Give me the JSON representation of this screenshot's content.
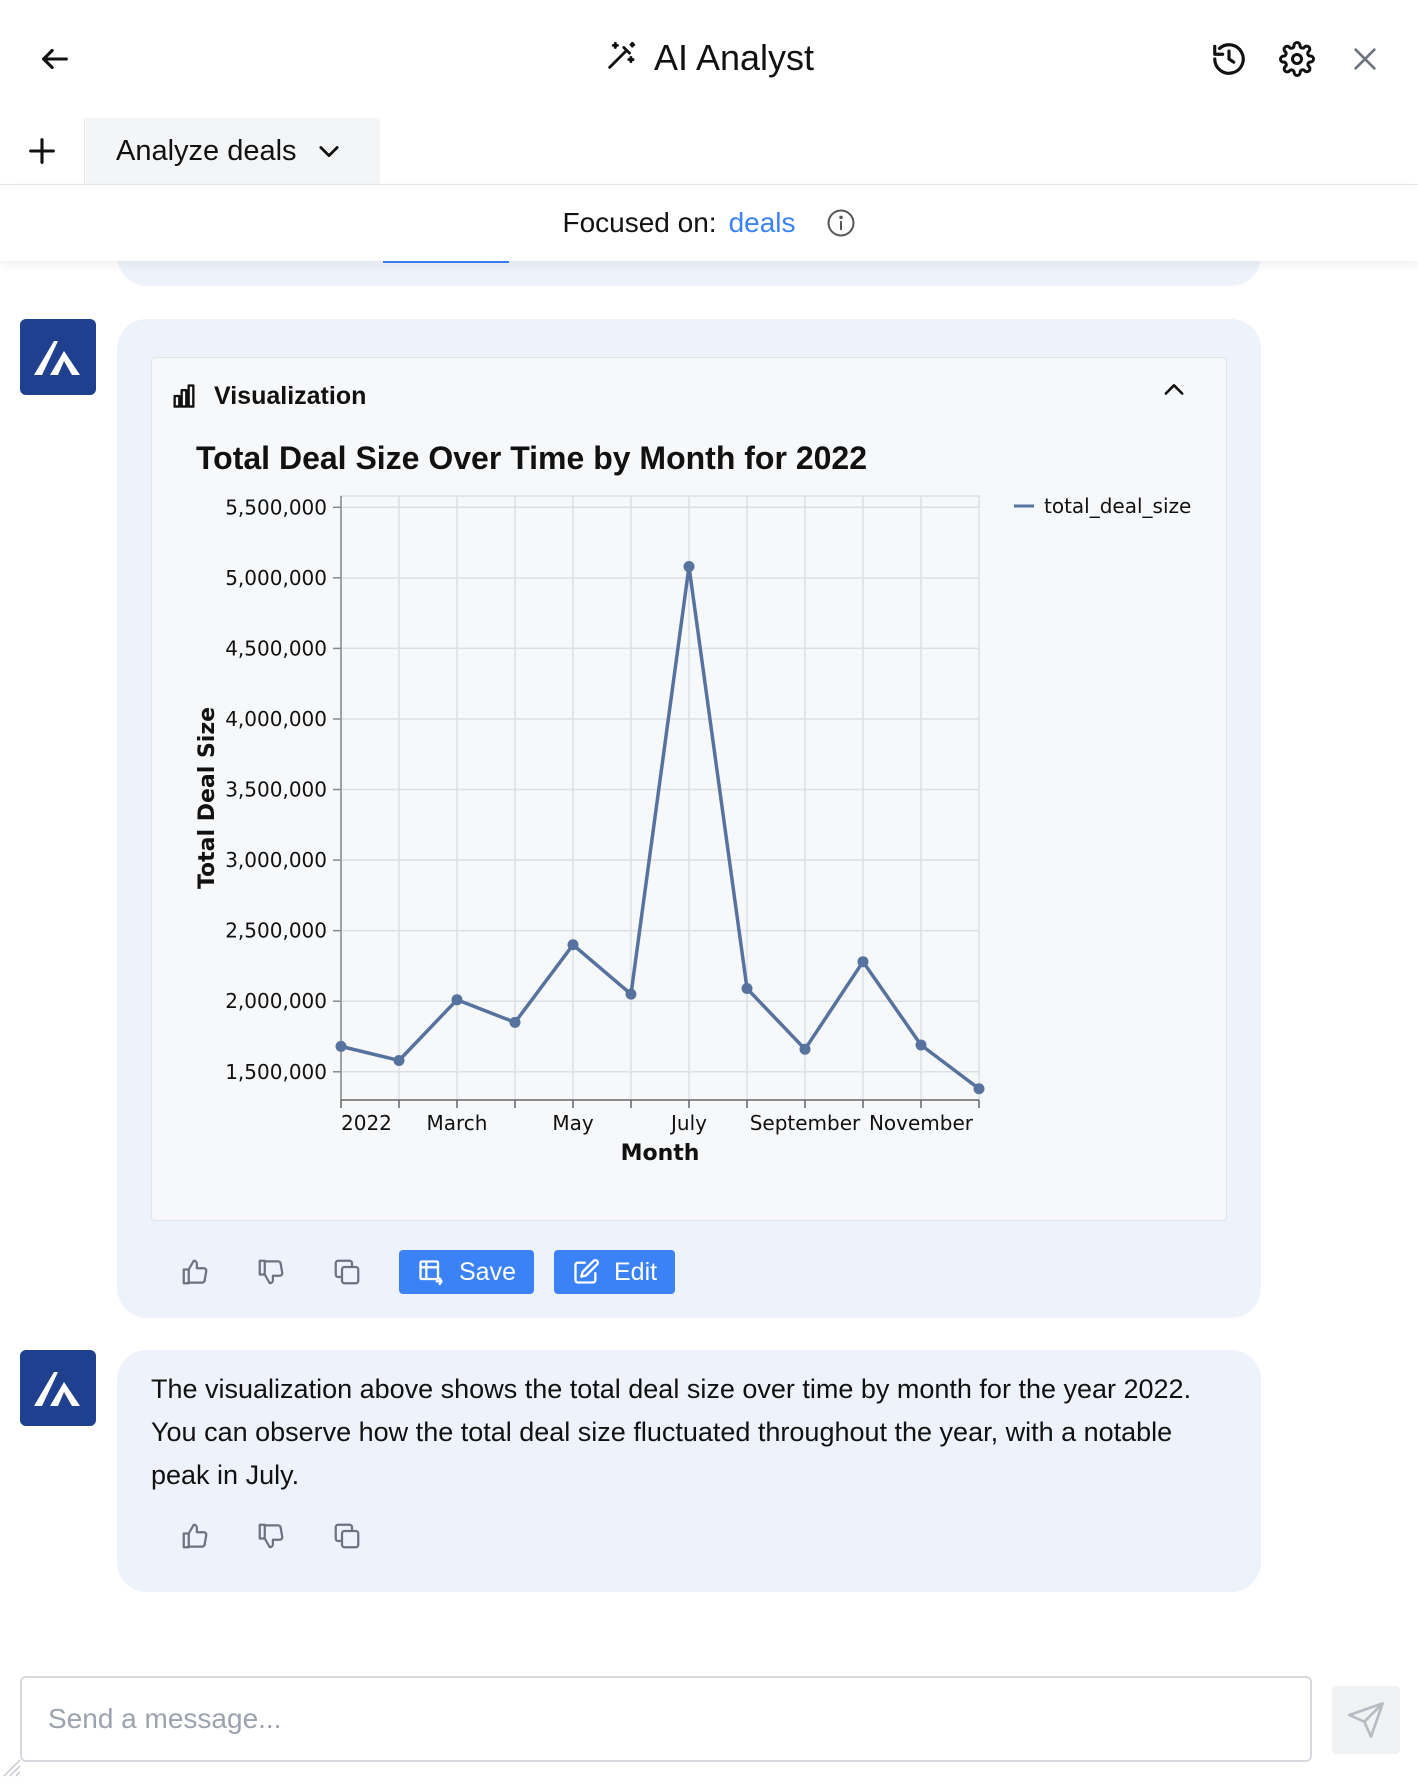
{
  "header": {
    "title": "AI Analyst"
  },
  "tabs": {
    "active_label": "Analyze deals"
  },
  "focus": {
    "label": "Focused on:",
    "value": "deals"
  },
  "visualization": {
    "section_title": "Visualization",
    "save_label": "Save",
    "edit_label": "Edit"
  },
  "chart_data": {
    "type": "line",
    "title": "Total Deal Size Over Time by Month for 2022",
    "xlabel": "Month",
    "ylabel": "Total Deal Size",
    "x": [
      "2022-01",
      "2022-02",
      "2022-03",
      "2022-04",
      "2022-05",
      "2022-06",
      "2022-07",
      "2022-08",
      "2022-09",
      "2022-10",
      "2022-11",
      "2022-12"
    ],
    "x_tick_labels": [
      "2022",
      "March",
      "May",
      "July",
      "September",
      "November"
    ],
    "y_tick_labels": [
      "1,500,000",
      "2,000,000",
      "2,500,000",
      "3,000,000",
      "3,500,000",
      "4,000,000",
      "4,500,000",
      "5,000,000",
      "5,500,000"
    ],
    "ylim": [
      1300000,
      5580000
    ],
    "series": [
      {
        "name": "total_deal_size",
        "color": "#56739f",
        "values": [
          1680000,
          1580000,
          2010000,
          1850000,
          2400000,
          2050000,
          5080000,
          2090000,
          1660000,
          2280000,
          1690000,
          1380000
        ]
      }
    ],
    "grid": true,
    "legend": "top-right"
  },
  "message": {
    "text": "The visualization above shows the total deal size over time by month for the year 2022. You can observe how the total deal size fluctuated throughout the year, with a notable peak in July."
  },
  "composer": {
    "placeholder": "Send a message..."
  }
}
